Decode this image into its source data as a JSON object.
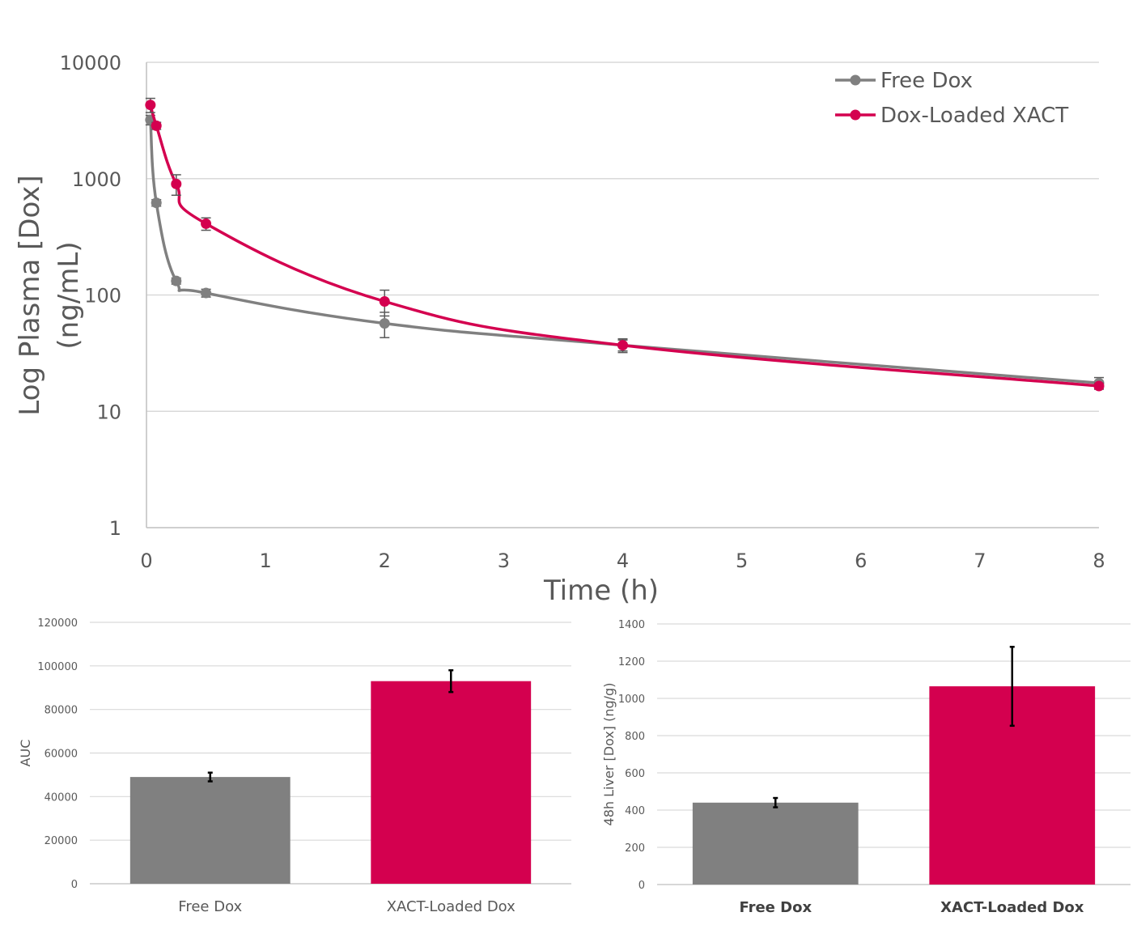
{
  "colors": {
    "free_dox": "#808080",
    "xact": "#D4004F",
    "grid": "#D9D9D9",
    "axis": "#BFBFBF",
    "text": "#595959"
  },
  "chart_data": [
    {
      "type": "line",
      "title": "",
      "xlabel": "Time (h)",
      "ylabel": [
        "Log Plasma [Dox]",
        "(ng/mL)"
      ],
      "yscale": "log",
      "xlim": [
        0,
        8
      ],
      "ylim": [
        1,
        10000
      ],
      "xticks": [
        "0",
        "1",
        "2",
        "3",
        "4",
        "5",
        "6",
        "7",
        "8"
      ],
      "yticks": [
        "1",
        "10",
        "100",
        "1000",
        "10000"
      ],
      "grid": "horizontal",
      "legend": "top-right",
      "series": [
        {
          "name": "Free Dox",
          "color_key": "free_dox",
          "x": [
            0.033,
            0.083,
            0.25,
            0.5,
            2,
            4,
            8
          ],
          "y": [
            3200,
            620,
            132,
            104,
            57,
            37,
            17.5
          ],
          "err": [
            300,
            40,
            8,
            8,
            14,
            4,
            2
          ]
        },
        {
          "name": "Dox-Loaded XACT",
          "color_key": "xact",
          "x": [
            0.033,
            0.083,
            0.25,
            0.5,
            2,
            4,
            8
          ],
          "y": [
            4300,
            2850,
            900,
            410,
            88,
            37,
            16.5
          ],
          "err": [
            600,
            200,
            180,
            50,
            22,
            5,
            1
          ]
        }
      ]
    },
    {
      "type": "bar",
      "title": "",
      "xlabel": "",
      "ylabel": "AUC",
      "ylim": [
        0,
        120000
      ],
      "yticks": [
        "0",
        "20000",
        "40000",
        "60000",
        "80000",
        "100000",
        "120000"
      ],
      "grid": "horizontal",
      "categories": [
        "Free Dox",
        "XACT-Loaded Dox"
      ],
      "values": [
        49000,
        93000
      ],
      "err": [
        2000,
        5000
      ],
      "color_keys": [
        "free_dox",
        "xact"
      ]
    },
    {
      "type": "bar",
      "title": "",
      "xlabel": "",
      "ylabel": "48h Liver [Dox] (ng/g)",
      "ylim": [
        0,
        1400
      ],
      "yticks": [
        "0",
        "200",
        "400",
        "600",
        "800",
        "1000",
        "1200",
        "1400"
      ],
      "grid": "horizontal",
      "categories": [
        "Free Dox",
        "XACT-Loaded Dox"
      ],
      "values": [
        440,
        1065
      ],
      "err": [
        25,
        212
      ],
      "color_keys": [
        "free_dox",
        "xact"
      ]
    }
  ]
}
